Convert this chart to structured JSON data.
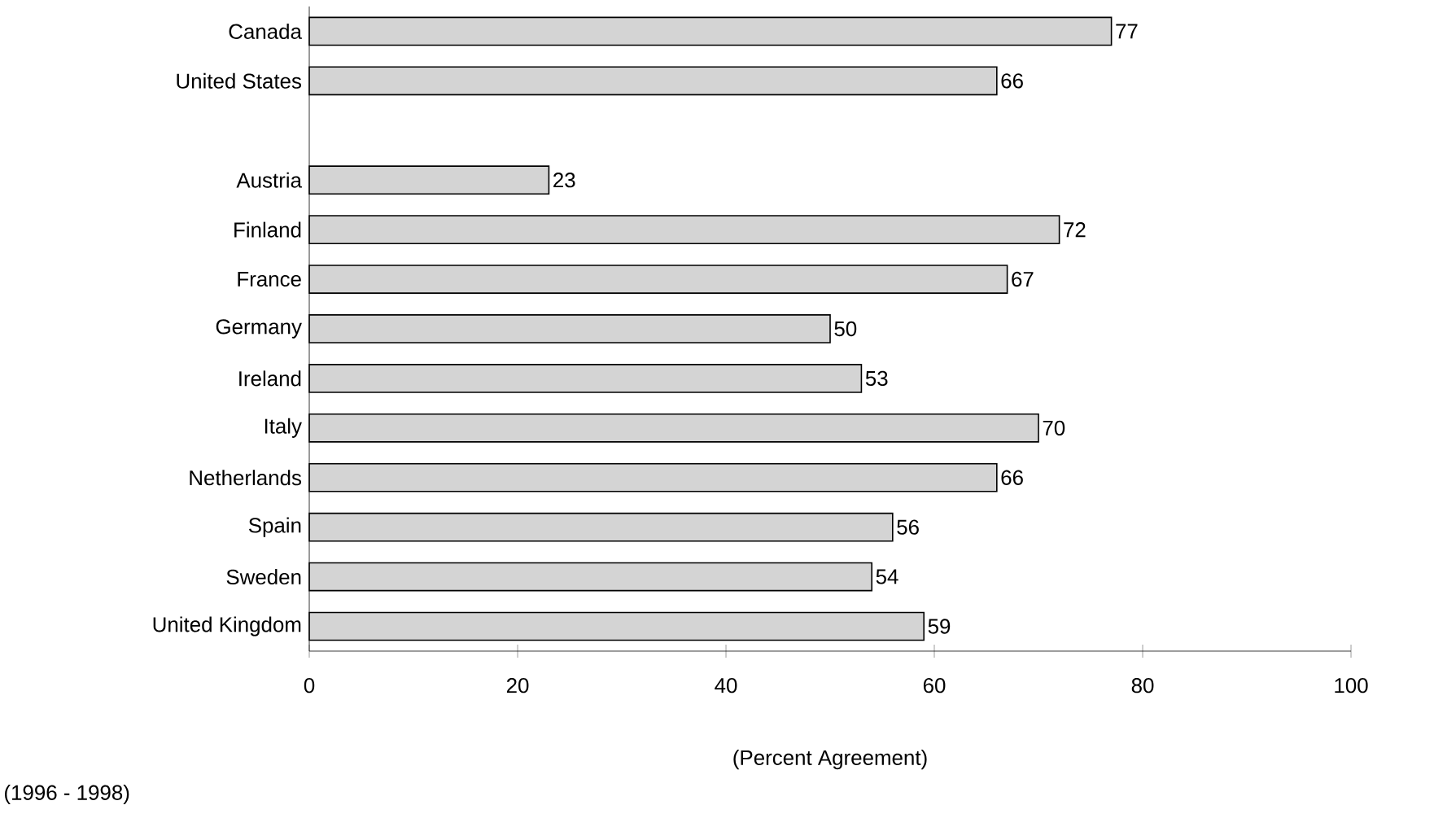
{
  "chart_data": {
    "type": "bar",
    "orientation": "horizontal",
    "categories": [
      "Canada",
      "United States",
      null,
      "Austria",
      "Finland",
      "France",
      "Germany",
      "Ireland",
      "Italy",
      "Netherlands",
      "Spain",
      "Sweden",
      "United Kingdom"
    ],
    "values": [
      77,
      66,
      null,
      23,
      72,
      67,
      50,
      53,
      70,
      66,
      56,
      54,
      59
    ],
    "color": "#d4d4d4",
    "data_labels": true,
    "xlim": [
      0,
      100
    ],
    "xticks": [
      0,
      20,
      40,
      60,
      80,
      100
    ],
    "xlabel": "(Percent Agreement)",
    "annotations": [
      "(1996 - 1998)"
    ],
    "grid": false
  }
}
